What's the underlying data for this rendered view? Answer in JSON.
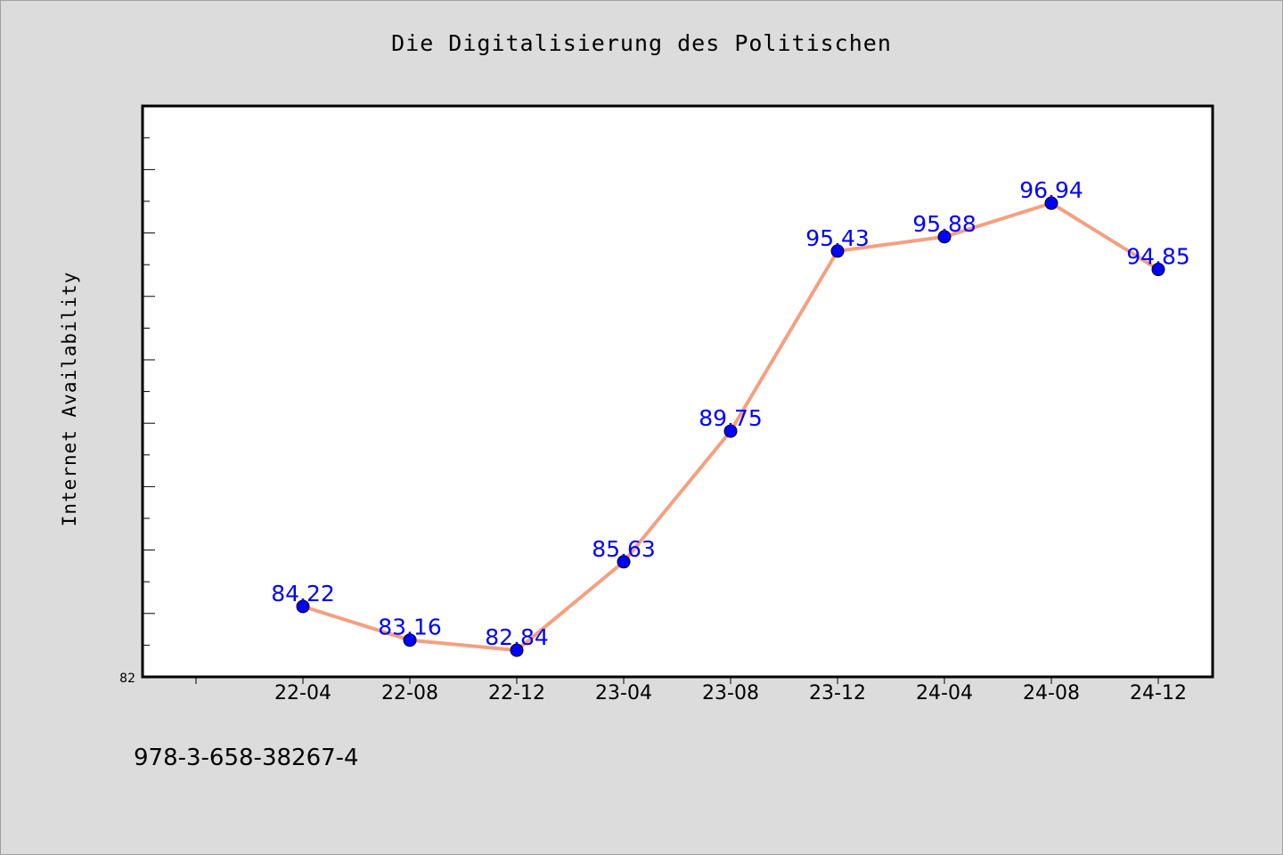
{
  "chart_data": {
    "type": "line",
    "title": "Die Digitalisierung des Politischen",
    "xlabel": "",
    "ylabel": "Internet Availability",
    "categories": [
      "22-04",
      "22-08",
      "22-12",
      "23-04",
      "23-08",
      "23-12",
      "24-04",
      "24-08",
      "24-12"
    ],
    "series": [
      {
        "values": [
          84.22,
          83.16,
          82.84,
          85.63,
          89.75,
          95.43,
          95.88,
          96.94,
          94.85
        ]
      }
    ],
    "data_labels": [
      "84.22",
      "83.16",
      "82.84",
      "85.63",
      "89.75",
      "95.43",
      "95.88",
      "96.94",
      "94.85"
    ],
    "ylim": [
      82,
      100
    ],
    "y_tick_labels": [
      "82"
    ],
    "grid": false,
    "legend": "none",
    "colors": {
      "line": "#f4a080",
      "marker": "#0000ff",
      "label": "#0000ff",
      "background": "#dcdcdc",
      "plot_background": "#ffffff"
    }
  },
  "footer": {
    "identifier": "978-3-658-38267-4"
  }
}
